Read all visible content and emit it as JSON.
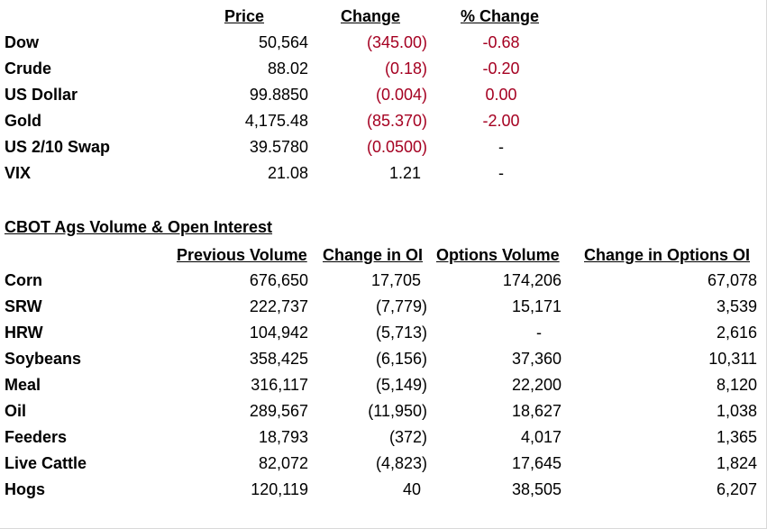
{
  "markets": {
    "headers": {
      "price": "Price",
      "change": "Change ",
      "pct_change": "% Change"
    },
    "rows": [
      {
        "name": "Dow",
        "price": "50,564",
        "change": "(345.00)",
        "pct": "-0.68"
      },
      {
        "name": "Crude",
        "price": "88.02",
        "change": "(0.18)",
        "pct": "-0.20"
      },
      {
        "name": "US Dollar",
        "price": "99.8850",
        "change": "(0.004)",
        "pct": "0.00"
      },
      {
        "name": "Gold",
        "price": "4,175.48",
        "change": "(85.370)",
        "pct": "-2.00"
      },
      {
        "name": "US 2/10 Swap",
        "price": "39.5780",
        "change": "(0.0500)",
        "pct": "-"
      },
      {
        "name": "VIX",
        "price": "21.08",
        "change": "1.21",
        "pct": "-"
      }
    ]
  },
  "cbot": {
    "title": "CBOT Ags Volume & Open Interest",
    "headers": {
      "prev_volume": "Previous Volume",
      "change_oi": "Change in OI",
      "options_volume": "Options Volume",
      "change_options_oi": "Change in Options OI"
    },
    "rows": [
      {
        "name": "Corn",
        "prev_volume": "676,650",
        "change_oi": "17,705",
        "options_volume": "174,206",
        "change_options_oi": "67,078"
      },
      {
        "name": "SRW",
        "prev_volume": "222,737",
        "change_oi": "(7,779)",
        "options_volume": "15,171",
        "change_options_oi": "3,539"
      },
      {
        "name": "HRW",
        "prev_volume": "104,942",
        "change_oi": "(5,713)",
        "options_volume": "-",
        "change_options_oi": "2,616"
      },
      {
        "name": "Soybeans",
        "prev_volume": "358,425",
        "change_oi": "(6,156)",
        "options_volume": "37,360",
        "change_options_oi": "10,311"
      },
      {
        "name": "Meal",
        "prev_volume": "316,117",
        "change_oi": "(5,149)",
        "options_volume": "22,200",
        "change_options_oi": "8,120"
      },
      {
        "name": "Oil",
        "prev_volume": "289,567",
        "change_oi": "(11,950)",
        "options_volume": "18,627",
        "change_options_oi": "1,038"
      },
      {
        "name": "Feeders",
        "prev_volume": "18,793",
        "change_oi": "(372)",
        "options_volume": "4,017",
        "change_options_oi": "1,365"
      },
      {
        "name": "Live Cattle",
        "prev_volume": "82,072",
        "change_oi": "(4,823)",
        "options_volume": "17,645",
        "change_options_oi": "1,824"
      },
      {
        "name": "Hogs",
        "prev_volume": "120,119",
        "change_oi": "40",
        "options_volume": "38,505",
        "change_options_oi": "6,207"
      }
    ]
  },
  "colors": {
    "negative": "#a50021",
    "gridline": "#d9d9d9"
  }
}
